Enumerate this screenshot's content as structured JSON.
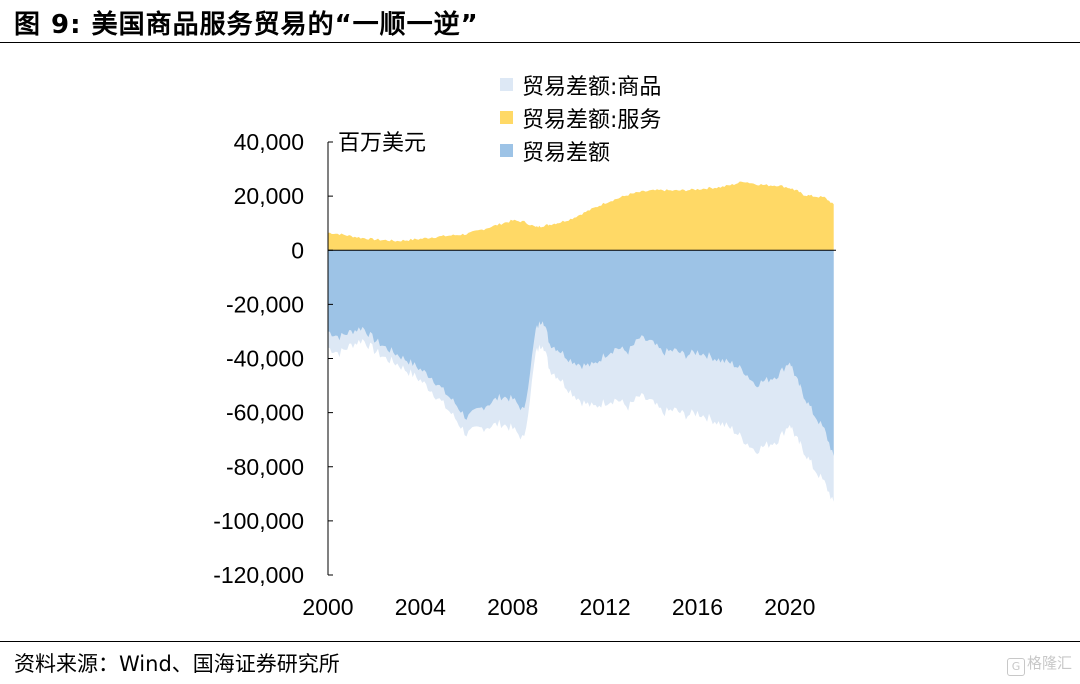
{
  "header": {
    "title": "图 9:  美国商品服务贸易的“一顺一逆”"
  },
  "footer": {
    "source": "资料来源：Wind、国海证券研究所",
    "watermark": "格隆汇"
  },
  "colors": {
    "goods": "#dde8f5",
    "services": "#ffd966",
    "total": "#9dc3e6"
  },
  "chart_data": {
    "type": "area",
    "title": "",
    "unit_label": "百万美元",
    "xlabel": "",
    "ylabel": "",
    "ylim": [
      -120000,
      40000
    ],
    "xlim": [
      2000,
      2022
    ],
    "yticks": [
      40000,
      20000,
      0,
      -20000,
      -40000,
      -60000,
      -80000,
      -100000,
      -120000
    ],
    "ytick_labels": [
      "40,000",
      "20,000",
      "0",
      "-20,000",
      "-40,000",
      "-60,000",
      "-80,000",
      "-100,000",
      "-120,000"
    ],
    "xticks": [
      2000,
      2004,
      2008,
      2012,
      2016,
      2020
    ],
    "xtick_labels": [
      "2000",
      "2004",
      "2008",
      "2012",
      "2016",
      "2020"
    ],
    "grid": false,
    "legend_position": "top-center",
    "legend": [
      "贸易差额:商品",
      "贸易差额:服务",
      "贸易差额"
    ],
    "series": [
      {
        "name": "贸易差额:商品",
        "x": [
          2000.0,
          2000.5,
          2001.0,
          2001.5,
          2002.0,
          2002.5,
          2003.0,
          2003.5,
          2004.0,
          2004.5,
          2005.0,
          2005.5,
          2006.0,
          2006.5,
          2007.0,
          2007.5,
          2008.0,
          2008.5,
          2009.0,
          2009.3,
          2009.6,
          2010.0,
          2010.5,
          2011.0,
          2011.5,
          2012.0,
          2012.5,
          2013.0,
          2013.5,
          2014.0,
          2014.5,
          2015.0,
          2015.5,
          2016.0,
          2016.5,
          2017.0,
          2017.5,
          2018.0,
          2018.5,
          2019.0,
          2019.5,
          2020.0,
          2020.3,
          2020.6,
          2021.0,
          2021.5,
          2021.9
        ],
        "values": [
          -36000,
          -38000,
          -35000,
          -33000,
          -37000,
          -40000,
          -42000,
          -45000,
          -48000,
          -52000,
          -57000,
          -62000,
          -68000,
          -66000,
          -65000,
          -64000,
          -66000,
          -70000,
          -38000,
          -34000,
          -44000,
          -47000,
          -52000,
          -56000,
          -58000,
          -56000,
          -55000,
          -58000,
          -54000,
          -56000,
          -60000,
          -59000,
          -61000,
          -60000,
          -62000,
          -64000,
          -66000,
          -70000,
          -74000,
          -72000,
          -70000,
          -64000,
          -70000,
          -74000,
          -80000,
          -86000,
          -93000
        ]
      },
      {
        "name": "贸易差额:服务",
        "x": [
          2000.0,
          2000.5,
          2001.0,
          2001.5,
          2002.0,
          2002.5,
          2003.0,
          2003.5,
          2004.0,
          2004.5,
          2005.0,
          2005.5,
          2006.0,
          2006.5,
          2007.0,
          2007.5,
          2008.0,
          2008.5,
          2009.0,
          2009.3,
          2009.6,
          2010.0,
          2010.5,
          2011.0,
          2011.5,
          2012.0,
          2012.5,
          2013.0,
          2013.5,
          2014.0,
          2014.5,
          2015.0,
          2015.5,
          2016.0,
          2016.5,
          2017.0,
          2017.5,
          2018.0,
          2018.5,
          2019.0,
          2019.5,
          2020.0,
          2020.3,
          2020.6,
          2021.0,
          2021.5,
          2021.9
        ],
        "values": [
          6500,
          6000,
          5200,
          4500,
          4000,
          3700,
          3400,
          3800,
          4200,
          4800,
          5200,
          5600,
          6000,
          7200,
          8500,
          9800,
          11000,
          10500,
          8500,
          9000,
          9500,
          10200,
          11500,
          13500,
          15500,
          17500,
          19000,
          20500,
          21500,
          22000,
          22200,
          22000,
          22200,
          22500,
          23000,
          23300,
          24200,
          25500,
          24500,
          24000,
          24000,
          23000,
          22000,
          20500,
          20000,
          19500,
          17000
        ]
      },
      {
        "name": "贸易差额",
        "x": [
          2000.0,
          2000.5,
          2001.0,
          2001.5,
          2002.0,
          2002.5,
          2003.0,
          2003.5,
          2004.0,
          2004.5,
          2005.0,
          2005.5,
          2006.0,
          2006.5,
          2007.0,
          2007.5,
          2008.0,
          2008.5,
          2009.0,
          2009.3,
          2009.6,
          2010.0,
          2010.5,
          2011.0,
          2011.5,
          2012.0,
          2012.5,
          2013.0,
          2013.5,
          2014.0,
          2014.5,
          2015.0,
          2015.5,
          2016.0,
          2016.5,
          2017.0,
          2017.5,
          2018.0,
          2018.5,
          2019.0,
          2019.5,
          2020.0,
          2020.3,
          2020.6,
          2021.0,
          2021.5,
          2021.9
        ],
        "values": [
          -30000,
          -32000,
          -30000,
          -28500,
          -33000,
          -36000,
          -38500,
          -41000,
          -44000,
          -47000,
          -52000,
          -56500,
          -62000,
          -59000,
          -56500,
          -54000,
          -55000,
          -59500,
          -29500,
          -25000,
          -34500,
          -36800,
          -40500,
          -42500,
          -42500,
          -38500,
          -36000,
          -37500,
          -32500,
          -34000,
          -37800,
          -37000,
          -38800,
          -37500,
          -39000,
          -40700,
          -41800,
          -44500,
          -49500,
          -48000,
          -46000,
          -41000,
          -48000,
          -53500,
          -60000,
          -66500,
          -76000
        ]
      }
    ]
  }
}
